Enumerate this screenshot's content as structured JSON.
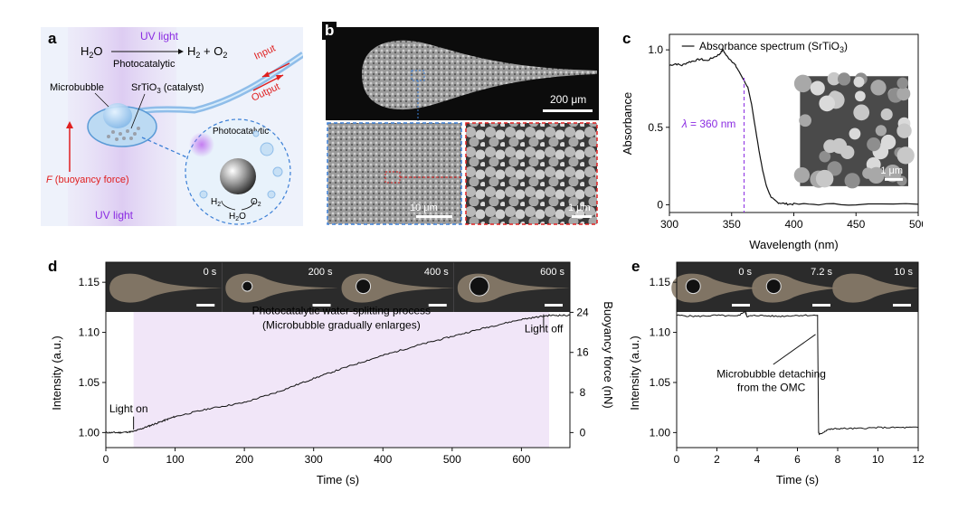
{
  "colors": {
    "accent_purple": "#8a2be2",
    "light_purple_bg": "#f1e6f8",
    "red": "#e02020",
    "blue_dashed": "#3b7fd6",
    "sem_gray": "#8a8a8a"
  },
  "panel_a": {
    "label": "a",
    "uv_light_top": "UV light",
    "reaction_left": "H",
    "reaction_left_sub": "2",
    "reaction_left_tail": "O",
    "reaction_right": "H",
    "reaction_right_sub": "2",
    "reaction_right_tail": " + O",
    "reaction_right_sub2": "2",
    "photocatalytic": "Photocatalytic",
    "input": "Input",
    "output": "Output",
    "microbubble": "Microbubble",
    "catalyst_prefix": "SrTiO",
    "catalyst_sub": "3",
    "catalyst_suffix": " (catalyst)",
    "inset_title": "Photocatalytic",
    "inset_h2": "H",
    "inset_h2_sub": "2",
    "inset_o2": "O",
    "inset_o2_sub": "2",
    "inset_h2o": "H",
    "inset_h2o_sub": "2",
    "inset_h2o_tail": "O",
    "force_label_italic": "F",
    "force_label_rest": " (buoyancy force)",
    "uv_light_bottom": "UV light"
  },
  "panel_b": {
    "label": "b",
    "scale_top": "200 μm",
    "scale_bl": "10 μm",
    "scale_br": "1 μm"
  },
  "chart_data": [
    {
      "panel": "c",
      "type": "line",
      "xlabel": "Wavelength (nm)",
      "ylabel": "Absorbance",
      "xlim": [
        300,
        500
      ],
      "ylim": [
        -0.05,
        1.1
      ],
      "xticks": [
        300,
        350,
        400,
        450,
        500
      ],
      "yticks": [
        0,
        0.5,
        1.0
      ],
      "ytick_labels": [
        "0",
        "0.5",
        "1.0"
      ],
      "legend_prefix": "Absorbance spectrum (SrTiO",
      "legend_sub": "3",
      "legend_suffix": ")",
      "annotation_lambda": "λ",
      "annotation_value": " = 360 nm",
      "inset_scale": "1 μm",
      "series": [
        {
          "name": "Absorbance spectrum (SrTiO3)",
          "x": [
            300,
            305,
            310,
            315,
            320,
            325,
            330,
            335,
            340,
            343,
            346,
            350,
            353,
            356,
            360,
            363,
            366,
            369,
            372,
            375,
            378,
            381,
            384,
            387,
            390,
            395,
            400,
            420,
            450,
            500
          ],
          "y": [
            0.9,
            0.91,
            0.9,
            0.92,
            0.93,
            0.94,
            0.93,
            0.95,
            0.97,
            1.0,
            0.96,
            0.93,
            0.9,
            0.86,
            0.8,
            0.76,
            0.65,
            0.5,
            0.35,
            0.22,
            0.12,
            0.06,
            0.03,
            0.015,
            0.01,
            0.005,
            0.004,
            0.003,
            0.003,
            0.003
          ]
        }
      ]
    },
    {
      "panel": "d",
      "type": "line",
      "xlabel": "Time (s)",
      "ylabel": "Intensity (a.u.)",
      "ylabel_right": "Buoyancy force (nN)",
      "xlim": [
        0,
        670
      ],
      "ylim": [
        0.985,
        1.17
      ],
      "xticks": [
        0,
        100,
        200,
        300,
        400,
        500,
        600
      ],
      "yticks": [
        1.0,
        1.05,
        1.1,
        1.15
      ],
      "ytick_labels": [
        "1.00",
        "1.05",
        "1.10",
        "1.15"
      ],
      "right_ticks": [
        "0",
        "8",
        "16",
        "24"
      ],
      "right_tick_values": [
        1.0,
        1.04,
        1.08,
        1.12
      ],
      "shaded_region": [
        40,
        640
      ],
      "annotation_process_line1": "Photocatalytic water-splitting process",
      "annotation_process_line2": "(Microbubble gradually enlarges)",
      "annotation_light_on": "Light on",
      "annotation_light_off": "Light off",
      "frame_labels": [
        "0 s",
        "200 s",
        "400 s",
        "600 s"
      ],
      "series": [
        {
          "x": [
            0,
            20,
            40,
            60,
            80,
            100,
            150,
            200,
            250,
            300,
            350,
            400,
            450,
            500,
            550,
            600,
            640,
            670
          ],
          "y": [
            1.0,
            1.0,
            1.001,
            1.006,
            1.011,
            1.016,
            1.024,
            1.03,
            1.041,
            1.054,
            1.066,
            1.077,
            1.087,
            1.096,
            1.105,
            1.113,
            1.117,
            1.117
          ]
        }
      ]
    },
    {
      "panel": "e",
      "type": "line",
      "xlabel": "Time (s)",
      "ylabel": "Intensity (a.u.)",
      "xlim": [
        0,
        12
      ],
      "ylim": [
        0.985,
        1.17
      ],
      "xticks": [
        0,
        2,
        4,
        6,
        8,
        10,
        12
      ],
      "yticks": [
        1.0,
        1.05,
        1.1,
        1.15
      ],
      "ytick_labels": [
        "1.00",
        "1.05",
        "1.10",
        "1.15"
      ],
      "annotation_line1": "Microbubble detaching",
      "annotation_line2": "from the OMC",
      "frame_labels": [
        "0 s",
        "7.2 s",
        "10 s"
      ],
      "series": [
        {
          "x": [
            0,
            1,
            2,
            3,
            3.4,
            3.5,
            4,
            5,
            6,
            7.0,
            7.05,
            7.1,
            7.5,
            8,
            9,
            10,
            11,
            12
          ],
          "y": [
            1.117,
            1.116,
            1.117,
            1.116,
            1.121,
            1.116,
            1.117,
            1.116,
            1.117,
            1.117,
            1.0,
            0.998,
            1.003,
            1.004,
            1.004,
            1.005,
            1.005,
            1.005
          ]
        }
      ]
    }
  ],
  "panel_labels": {
    "c": "c",
    "d": "d",
    "e": "e"
  }
}
